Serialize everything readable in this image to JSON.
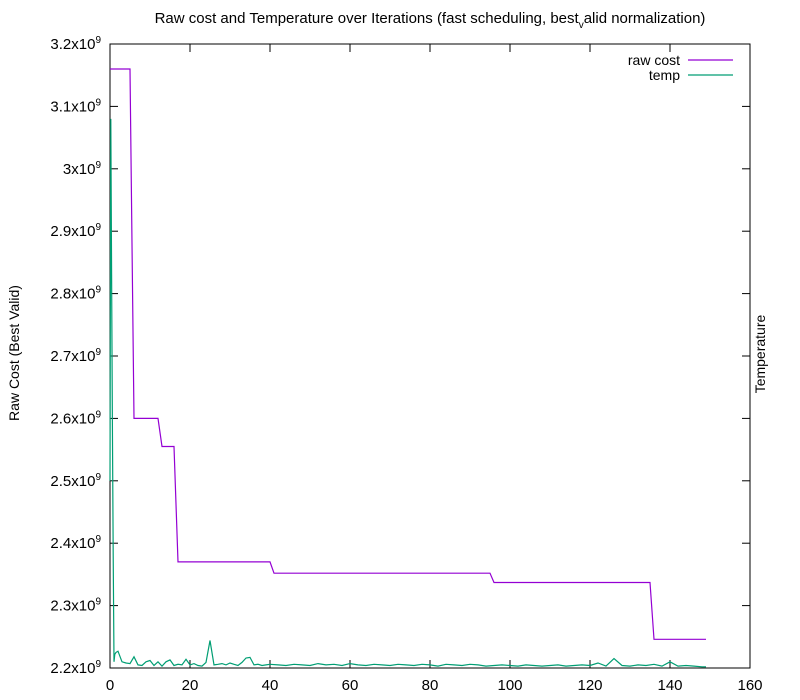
{
  "chart_data": {
    "type": "line",
    "title_main": "Raw cost and Temperature over Iterations (fast scheduling, best",
    "title_sub": "v",
    "title_rest": "alid normalization)",
    "xlabel": "",
    "ylabel": "Raw Cost (Best Valid)",
    "y2label": "Temperature",
    "xlim": [
      0,
      160
    ],
    "ylim": [
      2200000000.0,
      3200000000.0
    ],
    "xticks": [
      "0",
      "20",
      "40",
      "60",
      "80",
      "100",
      "120",
      "140",
      "160"
    ],
    "yticks": [
      {
        "base": "2.2x10",
        "exp": "9"
      },
      {
        "base": "2.3x10",
        "exp": "9"
      },
      {
        "base": "2.4x10",
        "exp": "9"
      },
      {
        "base": "2.5x10",
        "exp": "9"
      },
      {
        "base": "2.6x10",
        "exp": "9"
      },
      {
        "base": "2.7x10",
        "exp": "9"
      },
      {
        "base": "2.8x10",
        "exp": "9"
      },
      {
        "base": "2.9x10",
        "exp": "9"
      },
      {
        "base": "3x10",
        "exp": "9"
      },
      {
        "base": "3.1x10",
        "exp": "9"
      },
      {
        "base": "3.2x10",
        "exp": "9"
      }
    ],
    "legend_position": "top-right",
    "series": [
      {
        "name": "raw cost",
        "color": "#9400d3",
        "x": [
          0,
          5,
          6,
          12,
          13,
          16,
          17,
          40,
          41,
          95,
          96,
          135,
          136,
          149
        ],
        "y": [
          3160000000.0,
          3160000000.0,
          2600000000.0,
          2600000000.0,
          2555000000.0,
          2555000000.0,
          2370000000.0,
          2370000000.0,
          2352000000.0,
          2352000000.0,
          2337000000.0,
          2337000000.0,
          2246000000.0,
          2246000000.0
        ]
      },
      {
        "name": "temp",
        "color": "#009e73",
        "x": [
          0,
          0.2,
          0.4,
          0.6,
          0.8,
          1,
          1.2,
          1.5,
          2,
          3,
          4,
          5,
          6,
          7,
          8,
          9,
          10,
          11,
          12,
          13,
          14,
          15,
          16,
          17,
          18,
          19,
          20,
          21,
          22,
          23,
          24,
          25,
          26,
          27,
          28,
          29,
          30,
          31,
          32,
          33,
          34,
          35,
          36,
          37,
          38,
          39,
          40,
          42,
          44,
          46,
          48,
          50,
          52,
          54,
          56,
          58,
          60,
          62,
          64,
          66,
          68,
          70,
          72,
          74,
          76,
          78,
          80,
          82,
          84,
          86,
          88,
          90,
          92,
          94,
          96,
          98,
          100,
          102,
          104,
          106,
          108,
          110,
          112,
          114,
          116,
          118,
          120,
          122,
          124,
          126,
          128,
          130,
          132,
          134,
          136,
          138,
          140,
          142,
          144,
          146,
          148,
          149
        ],
        "y": [
          2500000000.0,
          3080000000.0,
          2830000000.0,
          2590000000.0,
          2380000000.0,
          2210000000.0,
          2222000000.0,
          2225000000.0,
          2227000000.0,
          2210000000.0,
          2208000000.0,
          2207000000.0,
          2218000000.0,
          2205000000.0,
          2204000000.0,
          2210000000.0,
          2212000000.0,
          2204000000.0,
          2210000000.0,
          2203000000.0,
          2210000000.0,
          2213000000.0,
          2204000000.0,
          2206000000.0,
          2205000000.0,
          2214000000.0,
          2205000000.0,
          2207000000.0,
          2204000000.0,
          2203000000.0,
          2209000000.0,
          2244000000.0,
          2205000000.0,
          2206000000.0,
          2207000000.0,
          2205000000.0,
          2208000000.0,
          2206000000.0,
          2204000000.0,
          2209000000.0,
          2216000000.0,
          2217000000.0,
          2205000000.0,
          2206000000.0,
          2204000000.0,
          2205000000.0,
          2206000000.0,
          2205000000.0,
          2204000000.0,
          2206000000.0,
          2205000000.0,
          2204000000.0,
          2207000000.0,
          2205000000.0,
          2206000000.0,
          2204000000.0,
          2207000000.0,
          2205000000.0,
          2204000000.0,
          2206000000.0,
          2205000000.0,
          2204000000.0,
          2206000000.0,
          2205000000.0,
          2204000000.0,
          2206000000.0,
          2205000000.0,
          2203000000.0,
          2206000000.0,
          2205000000.0,
          2204000000.0,
          2206000000.0,
          2205000000.0,
          2203000000.0,
          2204000000.0,
          2205000000.0,
          2204000000.0,
          2203000000.0,
          2205000000.0,
          2204000000.0,
          2203000000.0,
          2204000000.0,
          2205000000.0,
          2203000000.0,
          2204000000.0,
          2205000000.0,
          2204000000.0,
          2208000000.0,
          2203000000.0,
          2215000000.0,
          2204000000.0,
          2203000000.0,
          2205000000.0,
          2204000000.0,
          2206000000.0,
          2203000000.0,
          2210000000.0,
          2203000000.0,
          2204000000.0,
          2203000000.0,
          2202000000.0,
          2202000000.0
        ]
      }
    ]
  }
}
